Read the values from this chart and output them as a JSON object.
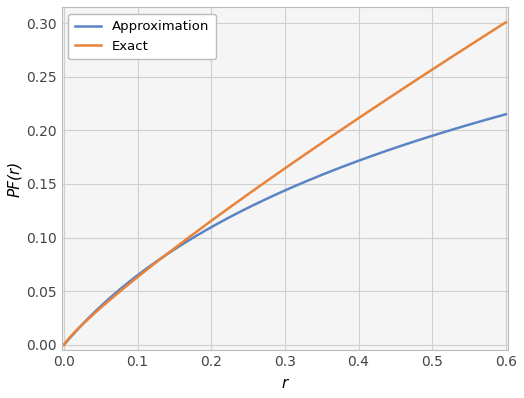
{
  "r_min": 0.0,
  "r_max": 0.6,
  "n_points": 1000,
  "approx_a": 0.345,
  "approx_b": 0.72,
  "exact_a": 0.5,
  "exact_b": 0.95,
  "approx_color": "#5b84c4",
  "exact_color": "#e8833a",
  "ylabel": "PF(r)",
  "xlabel": "r",
  "xlim": [
    -0.003,
    0.603
  ],
  "ylim": [
    -0.005,
    0.315
  ],
  "xticks": [
    0.0,
    0.1,
    0.2,
    0.3,
    0.4,
    0.5,
    0.6
  ],
  "yticks": [
    0.0,
    0.05,
    0.1,
    0.15,
    0.2,
    0.25,
    0.3
  ],
  "legend_labels": [
    "Approximation",
    "Exact"
  ],
  "line_width": 1.8,
  "figsize": [
    5.24,
    3.98
  ],
  "dpi": 100,
  "grid_color": "#d0d0d0",
  "bg_color": "#f5f5f5"
}
